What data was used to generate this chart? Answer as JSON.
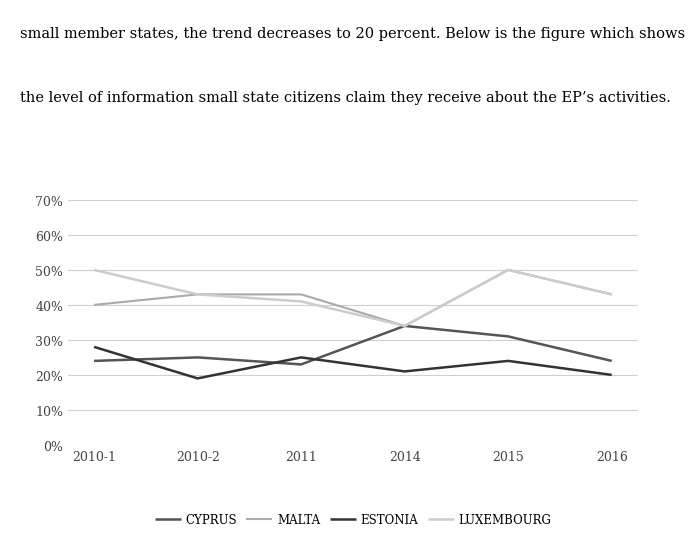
{
  "x_labels": [
    "2010-1",
    "2010-2",
    "2011",
    "2014",
    "2015",
    "2016"
  ],
  "series": {
    "CYPRUS": [
      24,
      25,
      23,
      34,
      31,
      24
    ],
    "MALTA": [
      40,
      43,
      43,
      34,
      50,
      43
    ],
    "ESTONIA": [
      28,
      19,
      25,
      21,
      24,
      20
    ],
    "LUXEMBOURG": [
      50,
      43,
      41,
      34,
      50,
      43
    ]
  },
  "colors": {
    "CYPRUS": "#555555",
    "MALTA": "#aaaaaa",
    "ESTONIA": "#333333",
    "LUXEMBOURG": "#cccccc"
  },
  "line_widths": {
    "CYPRUS": 1.8,
    "MALTA": 1.5,
    "ESTONIA": 1.8,
    "LUXEMBOURG": 1.8
  },
  "ylim": [
    0,
    75
  ],
  "yticks": [
    0,
    10,
    20,
    30,
    40,
    50,
    60,
    70
  ],
  "ytick_labels": [
    "0%",
    "10%",
    "20%",
    "30%",
    "40%",
    "50%",
    "60%",
    "70%"
  ],
  "background_color": "#ffffff",
  "grid_color": "#d0d0d0",
  "legend_order": [
    "CYPRUS",
    "MALTA",
    "ESTONIA",
    "LUXEMBOURG"
  ],
  "text_lines": [
    "small member states, the trend decreases to 20 percent. Below is the figure which shows",
    "the level of information small state citizens claim they receive about the EP’s activities."
  ],
  "text_fontsize": 10.5,
  "tick_fontsize": 9
}
